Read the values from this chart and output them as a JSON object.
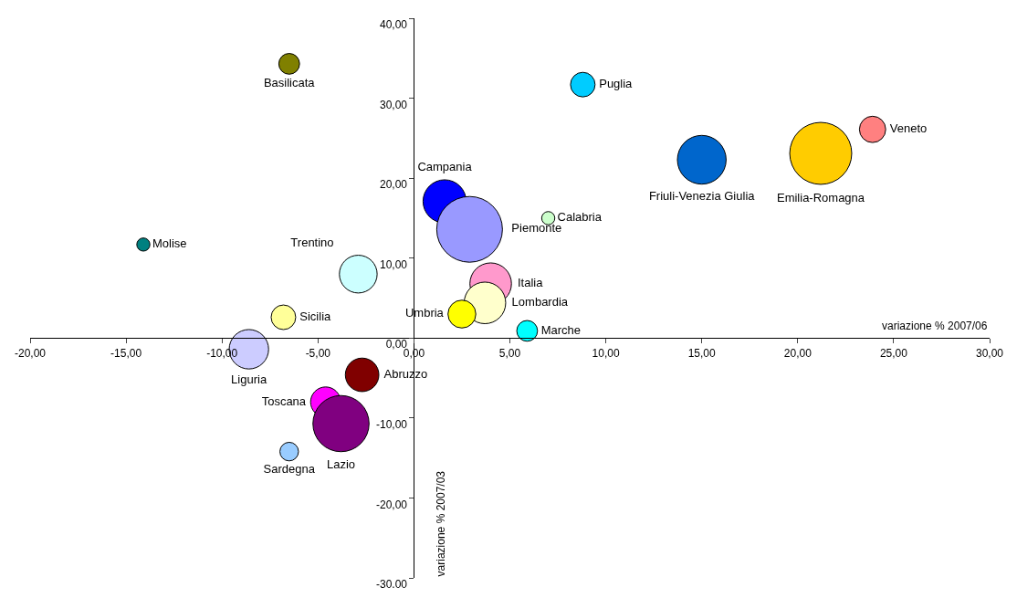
{
  "chart_data": {
    "type": "bubble",
    "xlabel": "variazione % 2007/06",
    "ylabel": "variazione % 2007/03",
    "legend": false,
    "grid": false,
    "xlim": [
      -20,
      30
    ],
    "xticks": [
      {
        "value": -20,
        "label": "-20,00"
      },
      {
        "value": -15,
        "label": "-15,00"
      },
      {
        "value": -10,
        "label": "-10,00"
      },
      {
        "value": -5,
        "label": "-5,00"
      },
      {
        "value": 0,
        "label": "0,00"
      },
      {
        "value": 5,
        "label": "5,00"
      },
      {
        "value": 10,
        "label": "10,00"
      },
      {
        "value": 15,
        "label": "15,00"
      },
      {
        "value": 20,
        "label": "20,00"
      },
      {
        "value": 25,
        "label": "25,00"
      },
      {
        "value": 30,
        "label": "30,00"
      }
    ],
    "ylim": [
      -30,
      40
    ],
    "yticks": [
      {
        "value": -30,
        "label": "-30.00"
      },
      {
        "value": -20,
        "label": "-20,00"
      },
      {
        "value": -10,
        "label": "-10,00"
      },
      {
        "value": 0,
        "label": "0,00"
      },
      {
        "value": 10,
        "label": "10,00"
      },
      {
        "value": 20,
        "label": "20,00"
      },
      {
        "value": 30,
        "label": "30,00"
      },
      {
        "value": 40,
        "label": "40,00"
      }
    ],
    "series": [
      {
        "name": "Basilicata",
        "color": "#808000",
        "x": [
          -6.5
        ],
        "values": [
          34.3
        ],
        "sizes": [
          0.1
        ]
      },
      {
        "name": "Puglia",
        "color": "#00ccff",
        "x": [
          8.8
        ],
        "values": [
          31.7
        ],
        "sizes": [
          0.14
        ]
      },
      {
        "name": "Veneto",
        "color": "#ff8080",
        "x": [
          23.9
        ],
        "values": [
          26.1
        ],
        "sizes": [
          0.16
        ]
      },
      {
        "name": "Emilia-Romagna",
        "color": "#ffcc00",
        "x": [
          21.2
        ],
        "values": [
          23.1
        ],
        "sizes": [
          0.89
        ]
      },
      {
        "name": "Friuli-Venezia Giulia",
        "color": "#0066cc",
        "x": [
          15
        ],
        "values": [
          22.3
        ],
        "sizes": [
          0.55
        ]
      },
      {
        "name": "Campania",
        "color": "#0000ff",
        "x": [
          1.6
        ],
        "values": [
          17.1
        ],
        "sizes": [
          0.43
        ]
      },
      {
        "name": "Calabria",
        "color": "#ccffcc",
        "x": [
          7
        ],
        "values": [
          15
        ],
        "sizes": [
          0.04
        ]
      },
      {
        "name": "Piemonte",
        "color": "#9999ff",
        "x": [
          2.9
        ],
        "values": [
          13.6
        ],
        "sizes": [
          1
        ]
      },
      {
        "name": "Molise",
        "color": "#008080",
        "x": [
          -14.1
        ],
        "values": [
          11.7
        ],
        "sizes": [
          0.04
        ]
      },
      {
        "name": "Trentino",
        "color": "#ccffff",
        "x": [
          -2.9
        ],
        "values": [
          8
        ],
        "sizes": [
          0.33
        ]
      },
      {
        "name": "Italia",
        "color": "#ff99cc",
        "x": [
          4
        ],
        "values": [
          6.8
        ],
        "sizes": [
          0.4
        ]
      },
      {
        "name": "Lombardia",
        "color": "#ffffcc",
        "x": [
          3.7
        ],
        "values": [
          4.4
        ],
        "sizes": [
          0.4
        ]
      },
      {
        "name": "Umbria",
        "color": "#ffff00",
        "x": [
          2.5
        ],
        "values": [
          3
        ],
        "sizes": [
          0.18
        ]
      },
      {
        "name": "Sicilia",
        "color": "#ffff99",
        "x": [
          -6.8
        ],
        "values": [
          2.6
        ],
        "sizes": [
          0.14
        ]
      },
      {
        "name": "Marche",
        "color": "#00ffff",
        "x": [
          5.9
        ],
        "values": [
          0.9
        ],
        "sizes": [
          0.1
        ]
      },
      {
        "name": "Liguria",
        "color": "#ccccff",
        "x": [
          -8.6
        ],
        "values": [
          -1.4
        ],
        "sizes": [
          0.36
        ]
      },
      {
        "name": "Abruzzo",
        "color": "#800000",
        "x": [
          -2.7
        ],
        "values": [
          -4.6
        ],
        "sizes": [
          0.26
        ]
      },
      {
        "name": "Toscana",
        "color": "#ff00ff",
        "x": [
          -4.6
        ],
        "values": [
          -8
        ],
        "sizes": [
          0.21
        ]
      },
      {
        "name": "Lazio",
        "color": "#800080",
        "x": [
          -3.8
        ],
        "values": [
          -10.7
        ],
        "sizes": [
          0.73
        ]
      },
      {
        "name": "Sardegna",
        "color": "#99ccff",
        "x": [
          -6.5
        ],
        "values": [
          -14.2
        ],
        "sizes": [
          0.08
        ]
      }
    ]
  }
}
